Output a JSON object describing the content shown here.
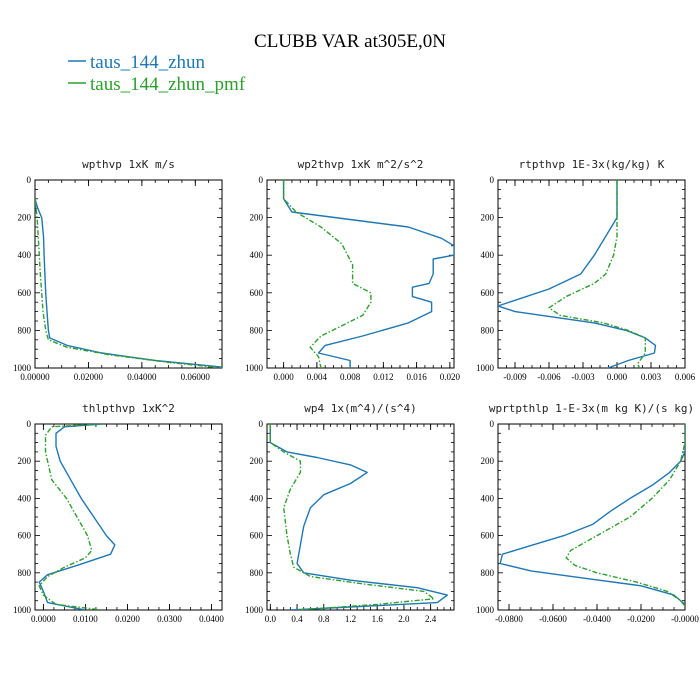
{
  "figure": {
    "title": "CLUBB VAR at305E,0N",
    "legend": [
      {
        "label": "taus_144_zhun",
        "color": "#1f77b4",
        "dash": "solid"
      },
      {
        "label": "taus_144_zhun_pmf",
        "color": "#2ca02c",
        "dash": "dashed"
      }
    ]
  },
  "chart_data": [
    {
      "type": "line",
      "title": "wpthvp  1xK m/s",
      "xlim": [
        0,
        0.07
      ],
      "ylim": [
        1000,
        0
      ],
      "inverted_y": true,
      "xticks": [
        0,
        0.02,
        0.04,
        0.06
      ],
      "xtick_labels": [
        "0.00000",
        "0.02000",
        "0.04000",
        "0.06000"
      ],
      "yticks": [
        0,
        200,
        400,
        600,
        800,
        1000
      ],
      "series": [
        {
          "name": "taus_144_zhun",
          "points": [
            [
              0,
              100
            ],
            [
              0.001,
              150
            ],
            [
              0.0025,
              200
            ],
            [
              0.0032,
              300
            ],
            [
              0.0034,
              400
            ],
            [
              0.0037,
              500
            ],
            [
              0.004,
              600
            ],
            [
              0.0045,
              700
            ],
            [
              0.005,
              800
            ],
            [
              0.0055,
              840
            ],
            [
              0.012,
              880
            ],
            [
              0.025,
              920
            ],
            [
              0.045,
              960
            ],
            [
              0.07,
              995
            ]
          ]
        },
        {
          "name": "taus_144_zhun_pmf",
          "points": [
            [
              0,
              100
            ],
            [
              0.0008,
              200
            ],
            [
              0.0012,
              300
            ],
            [
              0.0016,
              400
            ],
            [
              0.002,
              500
            ],
            [
              0.0025,
              600
            ],
            [
              0.003,
              700
            ],
            [
              0.004,
              800
            ],
            [
              0.005,
              850
            ],
            [
              0.012,
              890
            ],
            [
              0.028,
              930
            ],
            [
              0.05,
              970
            ],
            [
              0.07,
              1000
            ]
          ]
        }
      ]
    },
    {
      "type": "line",
      "title": "wp2thvp  1xK m^2/s^2",
      "xlim": [
        -0.002,
        0.0205
      ],
      "ylim": [
        1000,
        0
      ],
      "inverted_y": true,
      "xticks": [
        0,
        0.004,
        0.008,
        0.012,
        0.016,
        0.02
      ],
      "xtick_labels": [
        "0.000",
        "0.004",
        "0.008",
        "0.012",
        "0.016",
        "0.020"
      ],
      "yticks": [
        0,
        200,
        400,
        600,
        800,
        1000
      ],
      "series": [
        {
          "name": "taus_144_zhun",
          "points": [
            [
              0,
              0
            ],
            [
              0,
              100
            ],
            [
              0.001,
              170
            ],
            [
              0.008,
              210
            ],
            [
              0.015,
              250
            ],
            [
              0.019,
              310
            ],
            [
              0.0205,
              350
            ],
            [
              0.0205,
              400
            ],
            [
              0.018,
              420
            ],
            [
              0.018,
              500
            ],
            [
              0.0175,
              550
            ],
            [
              0.0155,
              570
            ],
            [
              0.0155,
              620
            ],
            [
              0.0178,
              650
            ],
            [
              0.0178,
              700
            ],
            [
              0.015,
              760
            ],
            [
              0.0095,
              830
            ],
            [
              0.005,
              880
            ],
            [
              0.0042,
              920
            ],
            [
              0.008,
              960
            ],
            [
              0.008,
              1000
            ]
          ]
        },
        {
          "name": "taus_144_zhun_pmf",
          "points": [
            [
              0,
              0
            ],
            [
              0,
              100
            ],
            [
              0.0015,
              170
            ],
            [
              0.0045,
              250
            ],
            [
              0.007,
              340
            ],
            [
              0.0077,
              400
            ],
            [
              0.0083,
              450
            ],
            [
              0.0083,
              550
            ],
            [
              0.0105,
              600
            ],
            [
              0.0105,
              650
            ],
            [
              0.0095,
              720
            ],
            [
              0.0068,
              780
            ],
            [
              0.0045,
              830
            ],
            [
              0.0032,
              890
            ],
            [
              0.0042,
              940
            ],
            [
              0.0045,
              1000
            ]
          ]
        }
      ]
    },
    {
      "type": "line",
      "title": "rtpthvp  1E-3x(kg/kg) K",
      "xlim": [
        -0.0105,
        0.006
      ],
      "ylim": [
        1000,
        0
      ],
      "inverted_y": true,
      "xticks": [
        -0.009,
        -0.006,
        -0.003,
        0,
        0.003,
        0.006
      ],
      "xtick_labels": [
        "-0.009",
        "-0.006",
        "-0.003",
        "0.000",
        "0.003",
        "0.006"
      ],
      "yticks": [
        0,
        200,
        400,
        600,
        800,
        1000
      ],
      "series": [
        {
          "name": "taus_144_zhun",
          "points": [
            [
              0,
              0
            ],
            [
              0,
              200
            ],
            [
              -0.001,
              300
            ],
            [
              -0.002,
              400
            ],
            [
              -0.0032,
              500
            ],
            [
              -0.006,
              580
            ],
            [
              -0.009,
              640
            ],
            [
              -0.0105,
              670
            ],
            [
              -0.009,
              700
            ],
            [
              -0.002,
              760
            ],
            [
              0.0008,
              800
            ],
            [
              0.0025,
              840
            ],
            [
              0.0034,
              880
            ],
            [
              0.0033,
              920
            ],
            [
              0.001,
              960
            ],
            [
              -0.0008,
              1000
            ]
          ]
        },
        {
          "name": "taus_144_zhun_pmf",
          "points": [
            [
              0,
              0
            ],
            [
              0,
              300
            ],
            [
              -0.0003,
              400
            ],
            [
              -0.001,
              500
            ],
            [
              -0.002,
              550
            ],
            [
              -0.0045,
              620
            ],
            [
              -0.006,
              680
            ],
            [
              -0.005,
              720
            ],
            [
              -0.0012,
              760
            ],
            [
              0.001,
              800
            ],
            [
              0.0025,
              840
            ],
            [
              0.0025,
              920
            ],
            [
              0.0018,
              980
            ],
            [
              0.002,
              1000
            ]
          ]
        }
      ]
    },
    {
      "type": "line",
      "title": "thlpthvp  1xK^2",
      "xlim": [
        -0.002,
        0.0425
      ],
      "ylim": [
        1000,
        0
      ],
      "inverted_y": true,
      "xticks": [
        0,
        0.01,
        0.02,
        0.03,
        0.04
      ],
      "xtick_labels": [
        "0.0000",
        "0.0100",
        "0.0200",
        "0.0300",
        "0.0400"
      ],
      "yticks": [
        0,
        200,
        400,
        600,
        800,
        1000
      ],
      "series": [
        {
          "name": "taus_144_zhun",
          "points": [
            [
              0.014,
              0
            ],
            [
              0.005,
              15
            ],
            [
              0.003,
              50
            ],
            [
              0.003,
              120
            ],
            [
              0.004,
              200
            ],
            [
              0.0065,
              300
            ],
            [
              0.009,
              400
            ],
            [
              0.012,
              500
            ],
            [
              0.015,
              600
            ],
            [
              0.017,
              650
            ],
            [
              0.016,
              700
            ],
            [
              0.008,
              760
            ],
            [
              0.001,
              810
            ],
            [
              -0.001,
              850
            ],
            [
              0,
              900
            ],
            [
              0.001,
              960
            ],
            [
              0.01,
              1000
            ]
          ]
        },
        {
          "name": "taus_144_zhun_pmf",
          "points": [
            [
              0.014,
              0
            ],
            [
              0.002,
              15
            ],
            [
              0.0005,
              60
            ],
            [
              0.0005,
              150
            ],
            [
              0.002,
              300
            ],
            [
              0.0055,
              400
            ],
            [
              0.008,
              500
            ],
            [
              0.0105,
              600
            ],
            [
              0.0115,
              680
            ],
            [
              0.01,
              720
            ],
            [
              0.005,
              770
            ],
            [
              0.001,
              820
            ],
            [
              -0.001,
              870
            ],
            [
              0,
              920
            ],
            [
              0.003,
              970
            ],
            [
              0.014,
              1000
            ]
          ]
        }
      ]
    },
    {
      "type": "line",
      "title": "wp4  1x(m^4)/(s^4)",
      "xlim": [
        -0.05,
        2.75
      ],
      "ylim": [
        1000,
        0
      ],
      "inverted_y": true,
      "xticks": [
        0,
        0.4,
        0.8,
        1.2,
        1.6,
        2.0,
        2.4
      ],
      "xtick_labels": [
        "0.0",
        "0.4",
        "0.8",
        "1.2",
        "1.6",
        "2.0",
        "2.4"
      ],
      "yticks": [
        0,
        200,
        400,
        600,
        800,
        1000
      ],
      "series": [
        {
          "name": "taus_144_zhun",
          "points": [
            [
              0,
              0
            ],
            [
              0,
              100
            ],
            [
              0.25,
              150
            ],
            [
              0.7,
              180
            ],
            [
              1.2,
              220
            ],
            [
              1.45,
              260
            ],
            [
              1.2,
              320
            ],
            [
              0.8,
              380
            ],
            [
              0.6,
              450
            ],
            [
              0.5,
              550
            ],
            [
              0.45,
              650
            ],
            [
              0.4,
              750
            ],
            [
              0.5,
              800
            ],
            [
              1.2,
              840
            ],
            [
              2.2,
              880
            ],
            [
              2.65,
              920
            ],
            [
              2.5,
              960
            ],
            [
              0.3,
              1000
            ]
          ]
        },
        {
          "name": "taus_144_zhun_pmf",
          "points": [
            [
              0,
              0
            ],
            [
              0,
              100
            ],
            [
              0.2,
              150
            ],
            [
              0.45,
              200
            ],
            [
              0.45,
              260
            ],
            [
              0.3,
              350
            ],
            [
              0.2,
              450
            ],
            [
              0.25,
              600
            ],
            [
              0.3,
              700
            ],
            [
              0.35,
              770
            ],
            [
              0.6,
              820
            ],
            [
              1.4,
              860
            ],
            [
              2.3,
              900
            ],
            [
              2.45,
              940
            ],
            [
              1.6,
              970
            ],
            [
              0.4,
              1000
            ]
          ]
        }
      ]
    },
    {
      "type": "line",
      "title": "wprtpthlp  1-E-3x(m kg K)/(s kg)",
      "xlim": [
        -0.085,
        0.0
      ],
      "ylim": [
        1000,
        0
      ],
      "inverted_y": true,
      "xticks": [
        -0.08,
        -0.06,
        -0.04,
        -0.02,
        0
      ],
      "xtick_labels": [
        "-0.0800",
        "-0.0600",
        "-0.0400",
        "-0.0200",
        "-0.0000"
      ],
      "yticks": [
        0,
        200,
        400,
        600,
        800,
        1000
      ],
      "series": [
        {
          "name": "taus_144_zhun",
          "points": [
            [
              0,
              0
            ],
            [
              0,
              150
            ],
            [
              -0.002,
              200
            ],
            [
              -0.007,
              260
            ],
            [
              -0.015,
              330
            ],
            [
              -0.025,
              400
            ],
            [
              -0.034,
              470
            ],
            [
              -0.042,
              540
            ],
            [
              -0.055,
              600
            ],
            [
              -0.072,
              660
            ],
            [
              -0.083,
              700
            ],
            [
              -0.084,
              750
            ],
            [
              -0.07,
              790
            ],
            [
              -0.045,
              830
            ],
            [
              -0.02,
              870
            ],
            [
              -0.005,
              920
            ],
            [
              0,
              970
            ]
          ]
        },
        {
          "name": "taus_144_zhun_pmf",
          "points": [
            [
              0,
              0
            ],
            [
              0,
              100
            ],
            [
              -0.002,
              200
            ],
            [
              -0.007,
              300
            ],
            [
              -0.015,
              400
            ],
            [
              -0.025,
              500
            ],
            [
              -0.04,
              600
            ],
            [
              -0.052,
              680
            ],
            [
              -0.054,
              720
            ],
            [
              -0.05,
              760
            ],
            [
              -0.04,
              800
            ],
            [
              -0.022,
              850
            ],
            [
              -0.008,
              900
            ],
            [
              -0.002,
              950
            ],
            [
              0,
              980
            ]
          ]
        }
      ]
    }
  ]
}
